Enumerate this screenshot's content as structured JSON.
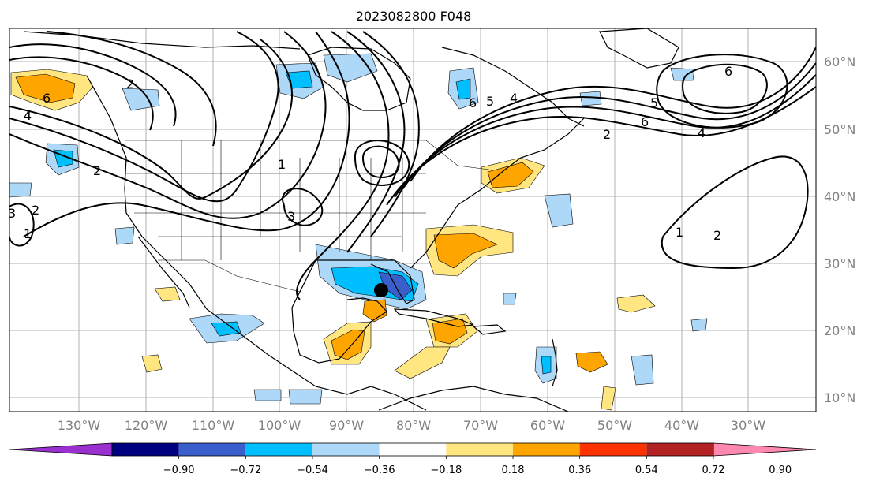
{
  "map": {
    "title": "2023082800 F048",
    "longitude_labels": [
      "130°W",
      "120°W",
      "110°W",
      "100°W",
      "90°W",
      "80°W",
      "70°W",
      "60°W",
      "50°W",
      "40°W",
      "30°W"
    ],
    "latitude_labels": [
      "60°N",
      "50°N",
      "40°N",
      "30°N",
      "20°N",
      "10°N"
    ],
    "contour_labels": [
      "1",
      "2",
      "3",
      "4",
      "5",
      "6"
    ],
    "marker": {
      "name": "storm-center-dot",
      "lon": -84.5,
      "lat": 26.0
    }
  },
  "colorbar": {
    "tick_labels": [
      "−0.90",
      "−0.72",
      "−0.54",
      "−0.36",
      "−0.18",
      "0.18",
      "0.36",
      "0.54",
      "0.72",
      "0.90"
    ],
    "colors": [
      "#9b30d0",
      "#000080",
      "#3a5fcd",
      "#00bfff",
      "#add8f7",
      "#ffffff",
      "#ffe680",
      "#ffa500",
      "#ff3300",
      "#b22222",
      "#ff88b0"
    ]
  }
}
